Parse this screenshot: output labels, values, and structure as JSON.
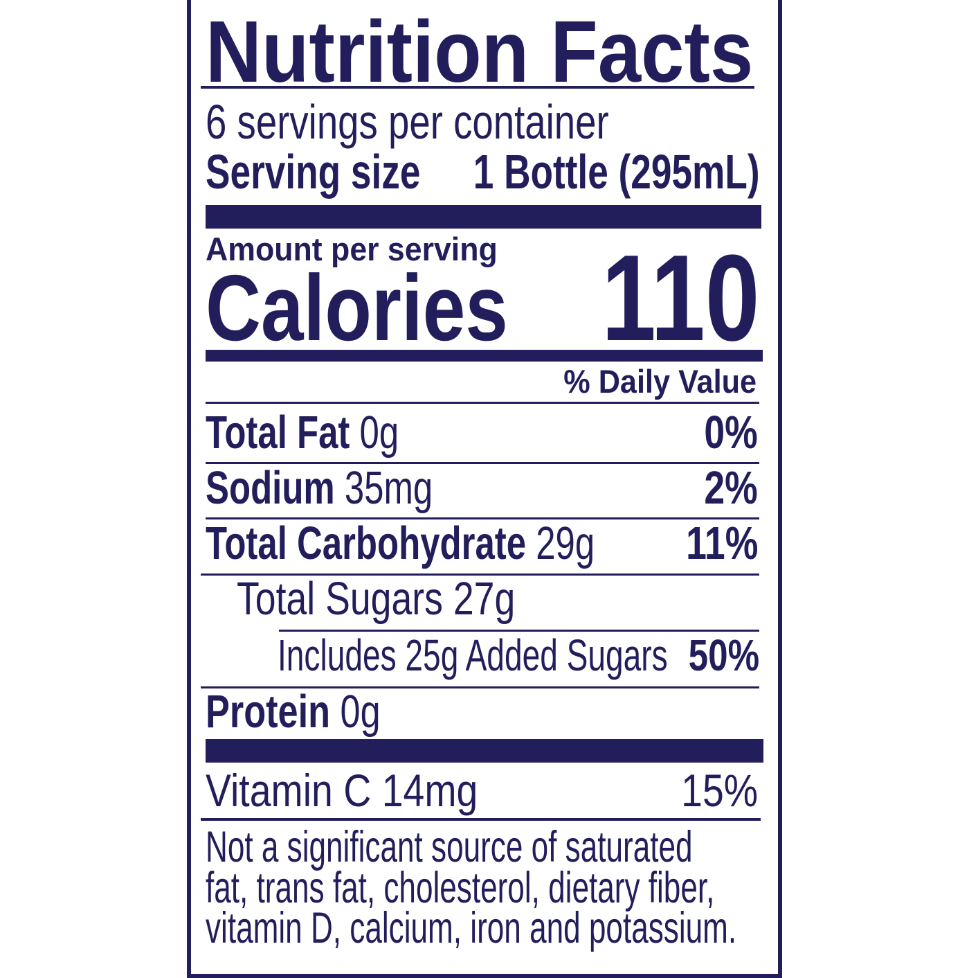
{
  "title": "Nutrition Facts",
  "servings_per_container": "6 servings per container",
  "serving_size": {
    "label": "Serving size",
    "value": "1 Bottle (295mL)"
  },
  "amount_per_serving": "Amount per serving",
  "calories": {
    "label": "Calories",
    "value": "110"
  },
  "daily_value_header": "% Daily Value",
  "nutrients": [
    {
      "name": "Total Fat",
      "amount": "0g",
      "dv": "0%"
    },
    {
      "name": "Sodium",
      "amount": "35mg",
      "dv": "2%"
    },
    {
      "name": "Total Carbohydrate",
      "amount": "29g",
      "dv": "11%"
    },
    {
      "name": "Total Sugars 27g"
    },
    {
      "name": "Includes 25g Added Sugars",
      "dv": "50%"
    },
    {
      "name": "Protein",
      "amount": "0g"
    }
  ],
  "vitamins": [
    {
      "name": "Vitamin C 14mg",
      "dv": "15%"
    }
  ],
  "footnote": [
    "Not a significant source of saturated",
    "fat, trans fat, cholesterol, dietary fiber,",
    "vitamin D, calcium, iron and potassium."
  ],
  "colors": {
    "ink": "#221e5c",
    "background": "#ffffff"
  }
}
